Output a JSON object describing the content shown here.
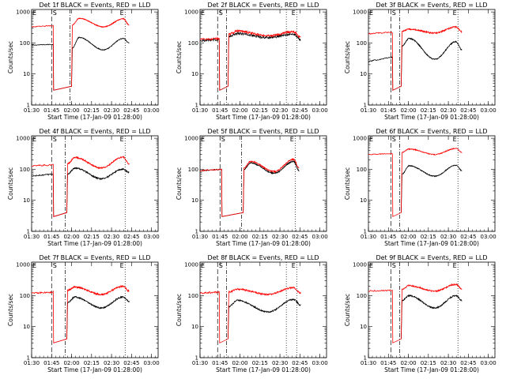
{
  "chart_data": {
    "type": "line",
    "panels": [
      {
        "title": "Det 1f BLACK = Events, RED = LLD",
        "black": {
          "pre": [
            85,
            90
          ],
          "base": [
            70,
            150,
            60,
            140,
            100
          ],
          "noise": 0.03
        },
        "red": {
          "pre": [
            330,
            360
          ],
          "base": [
            380,
            620,
            330,
            600,
            380
          ],
          "noise": 0.03
        },
        "vlines": [
          {
            "t": 0.25,
            "style": "dashed"
          },
          {
            "t": 0.48,
            "style": "dashdot"
          },
          {
            "t": 1.17,
            "style": "dotted"
          }
        ]
      },
      {
        "title": "Det 2f BLACK = Events, RED = LLD",
        "black": {
          "pre": [
            120,
            130
          ],
          "base": [
            160,
            200,
            150,
            190,
            130
          ],
          "noise": 0.08
        },
        "red": {
          "pre": [
            130,
            140
          ],
          "base": [
            190,
            240,
            170,
            230,
            150
          ],
          "noise": 0.08
        },
        "vlines": [
          {
            "t": 0.22,
            "style": "dashed"
          },
          {
            "t": 0.33,
            "style": "dashdot"
          },
          {
            "t": 1.08,
            "style": "dotted"
          },
          {
            "t": 1.21,
            "style": "dotted"
          }
        ]
      },
      {
        "title": "Det 3f BLACK = Events, RED = LLD",
        "black": {
          "pre": [
            25,
            35
          ],
          "base": [
            80,
            140,
            30,
            110,
            60
          ],
          "noise": 0.04
        },
        "red": {
          "pre": [
            200,
            220
          ],
          "base": [
            240,
            280,
            210,
            330,
            230
          ],
          "noise": 0.05
        },
        "vlines": [
          {
            "t": 0.28,
            "style": "dashed"
          },
          {
            "t": 0.39,
            "style": "dashdot"
          },
          {
            "t": 1.12,
            "style": "dotted"
          }
        ]
      },
      {
        "title": "Det 4f BLACK = Events, RED = LLD",
        "black": {
          "pre": [
            60,
            70
          ],
          "base": [
            70,
            110,
            50,
            100,
            80
          ],
          "noise": 0.05
        },
        "red": {
          "pre": [
            130,
            140
          ],
          "base": [
            150,
            240,
            110,
            250,
            150
          ],
          "noise": 0.05
        },
        "vlines": [
          {
            "t": 0.25,
            "style": "dashed"
          },
          {
            "t": 0.42,
            "style": "dashdot"
          },
          {
            "t": 1.17,
            "style": "dotted"
          }
        ]
      },
      {
        "title": "Det 5f BLACK = Events, RED = LLD",
        "black": {
          "pre": [
            90,
            100
          ],
          "base": [
            100,
            160,
            75,
            180,
            90
          ],
          "noise": 0.04
        },
        "red": {
          "pre": [
            90,
            100
          ],
          "base": [
            110,
            180,
            85,
            210,
            110
          ],
          "noise": 0.04
        },
        "vlines": [
          {
            "t": 0.25,
            "style": "dashed"
          },
          {
            "t": 0.52,
            "style": "dashdot"
          },
          {
            "t": 1.19,
            "style": "dotted"
          }
        ]
      },
      {
        "title": "Det 6f BLACK = Events, RED = LLD",
        "black": {
          "pre": [
            0,
            0
          ],
          "base": [
            70,
            130,
            60,
            135,
            90
          ],
          "noise": 0.03
        },
        "red": {
          "pre": [
            300,
            320
          ],
          "base": [
            350,
            450,
            300,
            470,
            350
          ],
          "noise": 0.03
        },
        "vlines": [
          {
            "t": 0.28,
            "style": "dashed"
          },
          {
            "t": 0.39,
            "style": "dashdot"
          },
          {
            "t": 1.12,
            "style": "dotted"
          }
        ]
      },
      {
        "title": "Det 7f BLACK = Events, RED = LLD",
        "black": {
          "pre": [
            0,
            0
          ],
          "base": [
            60,
            90,
            40,
            90,
            65
          ],
          "noise": 0.05
        },
        "red": {
          "pre": [
            120,
            130
          ],
          "base": [
            150,
            190,
            110,
            200,
            140
          ],
          "noise": 0.06
        },
        "vlines": [
          {
            "t": 0.25,
            "style": "dashed"
          },
          {
            "t": 0.42,
            "style": "dashdot"
          },
          {
            "t": 1.17,
            "style": "dotted"
          }
        ]
      },
      {
        "title": "Det 8f BLACK = Events, RED = LLD",
        "black": {
          "pre": [
            0,
            0
          ],
          "base": [
            45,
            70,
            30,
            75,
            50
          ],
          "noise": 0.05
        },
        "red": {
          "pre": [
            120,
            130
          ],
          "base": [
            130,
            160,
            110,
            180,
            120
          ],
          "noise": 0.06
        },
        "vlines": [
          {
            "t": 0.22,
            "style": "dashed"
          },
          {
            "t": 0.33,
            "style": "dashdot"
          },
          {
            "t": 1.08,
            "style": "dotted"
          },
          {
            "t": 1.21,
            "style": "dotted"
          }
        ]
      },
      {
        "title": "Det 9f BLACK = Events, RED = LLD",
        "black": {
          "pre": [
            0,
            0
          ],
          "base": [
            70,
            100,
            40,
            100,
            70
          ],
          "noise": 0.05
        },
        "red": {
          "pre": [
            140,
            150
          ],
          "base": [
            160,
            210,
            140,
            230,
            160
          ],
          "noise": 0.05
        },
        "vlines": [
          {
            "t": 0.28,
            "style": "dashed"
          },
          {
            "t": 0.39,
            "style": "dashdot"
          },
          {
            "t": 1.12,
            "style": "dotted"
          }
        ]
      }
    ],
    "x_tick_labels": [
      "01:30",
      "01:45",
      "02:00",
      "02:15",
      "02:30",
      "02:45",
      "03:00"
    ],
    "y_tick_labels": [
      "1",
      "10",
      "100",
      "1000"
    ],
    "xlim_hours": [
      1.5,
      3.083
    ],
    "ylim": [
      1,
      1200
    ],
    "yscale": "log",
    "xlabel": "Start Time (17-Jan-09 01:28:00)",
    "ylabel": "Counts/sec",
    "markers": [
      "E",
      "S",
      "E"
    ],
    "colors": {
      "events": "#000000",
      "lld": "#ff0000"
    }
  }
}
